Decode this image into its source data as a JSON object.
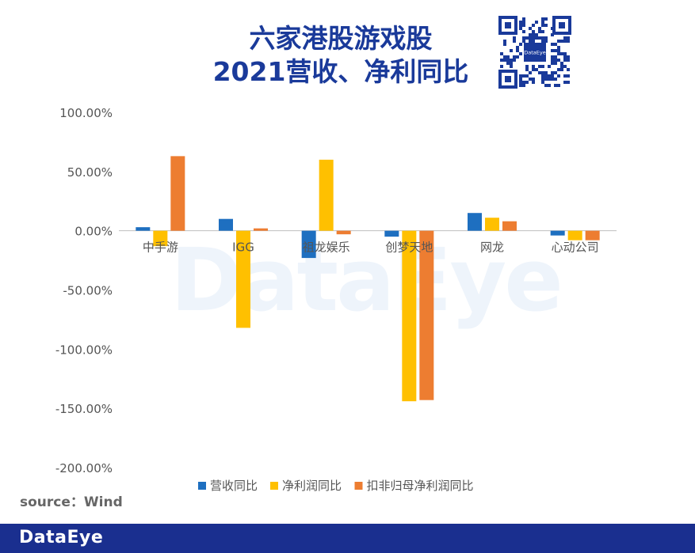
{
  "title_line1": "六家港股游戏股",
  "title_line2": "2021营收、净利同比",
  "qr": {
    "center_label": "DataEye"
  },
  "watermark": "DataEye",
  "source": "source：Wind",
  "footer": {
    "logo": "DataEye"
  },
  "colors": {
    "revenue": "#1e6fc0",
    "net_profit": "#ffc000",
    "adj_net_profit": "#ed7d31",
    "title": "#1a3a9a",
    "footer_bg": "#1a2f8f"
  },
  "chart_data": {
    "type": "bar",
    "title": "六家港股游戏股 2021营收、净利同比",
    "categories": [
      "中手游",
      "IGG",
      "祖龙娱乐",
      "创梦天地",
      "网龙",
      "心动公司"
    ],
    "series": [
      {
        "name": "营收同比",
        "values": [
          3,
          10,
          -23,
          -5,
          15,
          -4
        ]
      },
      {
        "name": "净利润同比",
        "values": [
          -13,
          -82,
          60,
          -144,
          11,
          -8
        ]
      },
      {
        "name": "扣非归母净利润同比",
        "values": [
          63,
          2,
          -3,
          -143,
          8,
          -8
        ]
      }
    ],
    "ylim": [
      -200,
      100
    ],
    "yticks": [
      100,
      50,
      0,
      -50,
      -100,
      -150,
      -200
    ],
    "ytick_labels": [
      "100.00%",
      "50.00%",
      "0.00%",
      "-50.00%",
      "-100.00%",
      "-150.00%",
      "-200.00%"
    ],
    "xlabel": "",
    "ylabel": "",
    "legend_position": "bottom",
    "grid": false
  }
}
